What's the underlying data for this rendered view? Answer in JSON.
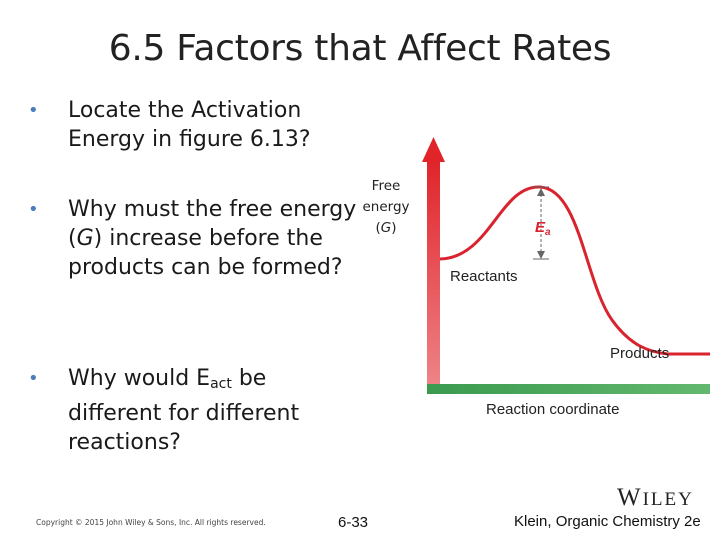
{
  "slide": {
    "title": "6.5 Factors that Affect Rates"
  },
  "bullets": [
    {
      "text_before": "Locate the Activation Energy in figure 6.13?"
    },
    {
      "text_before": "Why must the free energy (",
      "italic": "G",
      "text_after": ") increase before the products can be formed?"
    },
    {
      "text_before": "Why would E",
      "subscript": "act",
      "text_after": " be different for different reactions?"
    }
  ],
  "bullet_marker": "•",
  "diagram": {
    "y_axis_label_line1": "Free",
    "y_axis_label_line2": "energy",
    "y_axis_label_line3_pre": "(",
    "y_axis_label_line3_italic": "G",
    "y_axis_label_line3_post": ")",
    "x_axis_label": "Reaction coordinate",
    "reactants_label": "Reactants",
    "products_label": "Products",
    "ea_letter": "E",
    "ea_sub": "a",
    "colors": {
      "axis": "#3aa05a",
      "arrow": "#e0242a",
      "curve": "#d9232d",
      "ea": "#d9232d",
      "bracket": "#666666"
    }
  },
  "footer": {
    "copyright": "Copyright © 2015 John Wiley & Sons, Inc. All rights reserved.",
    "page": "6-33",
    "credit": "Klein, Organic Chemistry 2e",
    "publisher_first": "W",
    "publisher_rest": "ILEY"
  }
}
